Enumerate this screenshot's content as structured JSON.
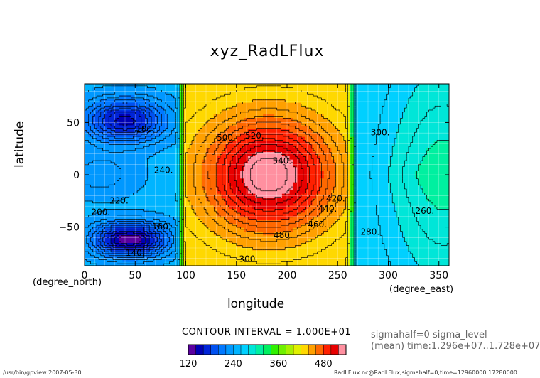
{
  "chart_data": {
    "type": "heatmap",
    "title": "xyz_RadLFlux",
    "xlabel": "longitude",
    "ylabel": "latitude",
    "x_unit": "(degree_east)",
    "y_unit": "(degree_north)",
    "xlim": [
      0,
      360
    ],
    "ylim": [
      -87,
      87
    ],
    "x_ticks": [
      "0",
      "50",
      "100",
      "150",
      "200",
      "250",
      "300",
      "350"
    ],
    "x_tick_values": [
      0,
      50,
      100,
      150,
      200,
      250,
      300,
      350
    ],
    "y_ticks": [
      "50",
      "0",
      "−50"
    ],
    "y_tick_values": [
      50,
      0,
      -50
    ],
    "contour_interval_text": "CONTOUR INTERVAL = 1.000E+01",
    "colorbar": {
      "min": 120,
      "max": 540,
      "ticks": [
        "120",
        "240",
        "360",
        "480"
      ],
      "tick_values": [
        120,
        240,
        360,
        480
      ],
      "colors": [
        "#5a00a0",
        "#0000b4",
        "#0024d8",
        "#0050f0",
        "#0078ff",
        "#0098ff",
        "#00b4ff",
        "#00d0ff",
        "#00e6d8",
        "#00f0a0",
        "#00f060",
        "#30f000",
        "#70f000",
        "#a8f000",
        "#e0f000",
        "#ffd800",
        "#ffa000",
        "#ff6800",
        "#ff2000",
        "#e80000",
        "#ff90a0"
      ]
    },
    "contour_labels": [
      {
        "text": "540.",
        "lon": 195,
        "lat": 13
      },
      {
        "text": "520.",
        "lon": 168,
        "lat": 37
      },
      {
        "text": "500.",
        "lon": 140,
        "lat": 35
      },
      {
        "text": "480.",
        "lon": 196,
        "lat": -58
      },
      {
        "text": "460.",
        "lon": 230,
        "lat": -48
      },
      {
        "text": "440.",
        "lon": 240,
        "lat": -33
      },
      {
        "text": "420.",
        "lon": 248,
        "lat": -23
      },
      {
        "text": "300.",
        "lon": 292,
        "lat": 40
      },
      {
        "text": "280.",
        "lon": 282,
        "lat": -55
      },
      {
        "text": "260.",
        "lon": 336,
        "lat": -35
      },
      {
        "text": "240.",
        "lon": 78,
        "lat": 4
      },
      {
        "text": "220.",
        "lon": 34,
        "lat": -25
      },
      {
        "text": "200.",
        "lon": 16,
        "lat": -36
      },
      {
        "text": "180.",
        "lon": 60,
        "lat": 43
      },
      {
        "text": "160.",
        "lon": 76,
        "lat": -50
      },
      {
        "text": "140.",
        "lon": 50,
        "lat": -75
      },
      {
        "text": "300.",
        "lon": 162,
        "lat": -81
      }
    ]
  },
  "info": {
    "line1": "sigmahalf=0 sigma_level",
    "line2": "(mean) time:1.296e+07..1.728e+07"
  },
  "footer": {
    "left": "/usr/bin/gpview  2007-05-30",
    "right": "RadLFlux.nc@RadLFlux,sigmahalf=0,time=12960000:17280000"
  }
}
